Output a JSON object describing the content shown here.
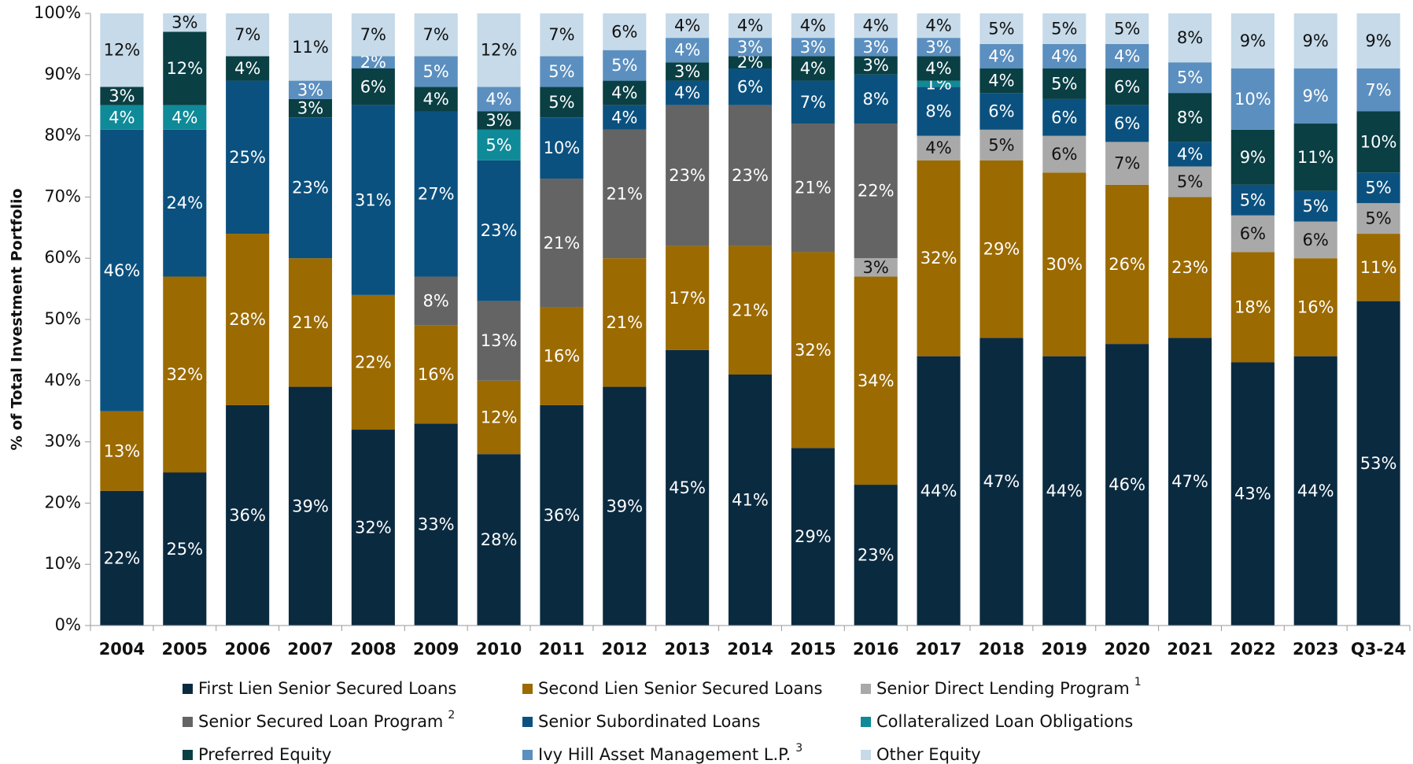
{
  "chart_data": {
    "type": "stacked_bar",
    "y_label": "% of Total Investment Portfolio",
    "categories": [
      "2004",
      "2005",
      "2006",
      "2007",
      "2008",
      "2009",
      "2010",
      "2011",
      "2012",
      "2013",
      "2014",
      "2015",
      "2016",
      "2017",
      "2018",
      "2019",
      "2020",
      "2021",
      "2022",
      "2023",
      "Q3-24"
    ],
    "ylim": [
      0,
      100
    ],
    "yticks": [
      {
        "value": 0,
        "label": "0%"
      },
      {
        "value": 10,
        "label": "10%"
      },
      {
        "value": 20,
        "label": "20%"
      },
      {
        "value": 30,
        "label": "30%"
      },
      {
        "value": 40,
        "label": "40%"
      },
      {
        "value": 50,
        "label": "50%"
      },
      {
        "value": 60,
        "label": "60%"
      },
      {
        "value": 70,
        "label": "70%"
      },
      {
        "value": 80,
        "label": "80%"
      },
      {
        "value": 90,
        "label": "90%"
      },
      {
        "value": 100,
        "label": "100%"
      }
    ],
    "series": [
      {
        "name": "First Lien Senior Secured Loans",
        "color": "#0a2a40",
        "values": [
          22,
          25,
          36,
          39,
          32,
          33,
          28,
          36,
          39,
          45,
          41,
          29,
          23,
          44,
          47,
          44,
          46,
          47,
          43,
          44,
          53
        ],
        "value_labels": [
          "22%",
          "25%",
          "36%",
          "39%",
          "32%",
          "33%",
          "28%",
          "36%",
          "39%",
          "45%",
          "41%",
          "29%",
          "23%",
          "44%",
          "47%",
          "44%",
          "46%",
          "47%",
          "43%",
          "44%",
          "53%"
        ]
      },
      {
        "name": "Second Lien Senior Secured Loans",
        "color": "#9b6a00",
        "values": [
          13,
          32,
          28,
          21,
          22,
          16,
          12,
          16,
          21,
          17,
          21,
          32,
          34,
          32,
          29,
          30,
          26,
          23,
          18,
          16,
          11
        ],
        "value_labels": [
          "13%",
          "32%",
          "28%",
          "21%",
          "22%",
          "16%",
          "12%",
          "16%",
          "21%",
          "17%",
          "21%",
          "32%",
          "34%",
          "32%",
          "29%",
          "30%",
          "26%",
          "23%",
          "18%",
          "16%",
          "11%"
        ]
      },
      {
        "name": "Senior Direct Lending Program",
        "note": "1",
        "color": "#a9a9a9",
        "values": [
          null,
          null,
          null,
          null,
          null,
          null,
          null,
          null,
          null,
          null,
          null,
          null,
          3,
          4,
          5,
          6,
          7,
          5,
          6,
          6,
          5
        ],
        "value_labels": [
          null,
          null,
          null,
          null,
          null,
          null,
          null,
          null,
          null,
          null,
          null,
          null,
          "3%",
          "4%",
          "5%",
          "6%",
          "7%",
          "5%",
          "6%",
          "6%",
          "5%"
        ]
      },
      {
        "name": "Senior Secured Loan Program",
        "note": "2",
        "color": "#646464",
        "values": [
          null,
          null,
          null,
          null,
          null,
          8,
          13,
          21,
          21,
          23,
          23,
          21,
          22,
          null,
          null,
          null,
          null,
          null,
          null,
          null,
          null
        ],
        "value_labels": [
          null,
          null,
          null,
          null,
          null,
          "8%",
          "13%",
          "21%",
          "21%",
          "23%",
          "23%",
          "21%",
          "22%",
          null,
          null,
          null,
          null,
          null,
          null,
          null,
          null
        ]
      },
      {
        "name": "Senior Subordinated Loans",
        "color": "#0b517f",
        "values": [
          46,
          24,
          25,
          23,
          31,
          27,
          23,
          10,
          4,
          4,
          6,
          7,
          8,
          8,
          6,
          6,
          6,
          4,
          5,
          5,
          5
        ],
        "value_labels": [
          "46%",
          "24%",
          "25%",
          "23%",
          "31%",
          "27%",
          "23%",
          "10%",
          "4%",
          "4%",
          "6%",
          "7%",
          "8%",
          "8%",
          "6%",
          "6%",
          "6%",
          "4%",
          "5%",
          "5%",
          "5%"
        ]
      },
      {
        "name": "Collateralized Loan Obligations",
        "color": "#0f8a98",
        "values": [
          4,
          4,
          null,
          null,
          null,
          null,
          5,
          null,
          null,
          null,
          null,
          null,
          null,
          1,
          null,
          null,
          null,
          null,
          null,
          null,
          null
        ],
        "value_labels": [
          "4%",
          "4%",
          null,
          null,
          null,
          null,
          "5%",
          null,
          null,
          null,
          null,
          null,
          null,
          "1%",
          null,
          null,
          null,
          null,
          null,
          null,
          null
        ]
      },
      {
        "name": "Preferred Equity",
        "color": "#0a3f44",
        "values": [
          3,
          12,
          4,
          3,
          6,
          4,
          3,
          5,
          4,
          3,
          2,
          4,
          3,
          4,
          4,
          5,
          6,
          8,
          9,
          11,
          10
        ],
        "value_labels": [
          "3%",
          "12%",
          "4%",
          "3%",
          "6%",
          "4%",
          "3%",
          "5%",
          "4%",
          "3%",
          "2%",
          "4%",
          "3%",
          "4%",
          "4%",
          "5%",
          "6%",
          "8%",
          "9%",
          "11%",
          "10%"
        ]
      },
      {
        "name": "Ivy Hill Asset Management L.P.",
        "note": "3",
        "color": "#5b8fbf",
        "values": [
          null,
          null,
          null,
          3,
          2,
          5,
          4,
          5,
          5,
          4,
          3,
          3,
          3,
          3,
          4,
          4,
          4,
          5,
          10,
          9,
          7
        ],
        "value_labels": [
          null,
          null,
          null,
          "3%",
          "2%",
          "5%",
          "4%",
          "5%",
          "5%",
          "4%",
          "3%",
          "3%",
          "3%",
          "3%",
          "4%",
          "4%",
          "4%",
          "5%",
          "10%",
          "9%",
          "7%"
        ]
      },
      {
        "name": "Other Equity",
        "color": "#c6dae9",
        "values": [
          12,
          3,
          7,
          11,
          7,
          7,
          12,
          7,
          6,
          4,
          4,
          4,
          4,
          4,
          5,
          5,
          5,
          8,
          9,
          9,
          9
        ],
        "value_labels": [
          "12%",
          "3%",
          "7%",
          "11%",
          "7%",
          "7%",
          "12%",
          "7%",
          "6%",
          "4%",
          "4%",
          "4%",
          "4%",
          "4%",
          "5%",
          "5%",
          "5%",
          "8%",
          "9%",
          "9%",
          "9%"
        ]
      }
    ]
  }
}
